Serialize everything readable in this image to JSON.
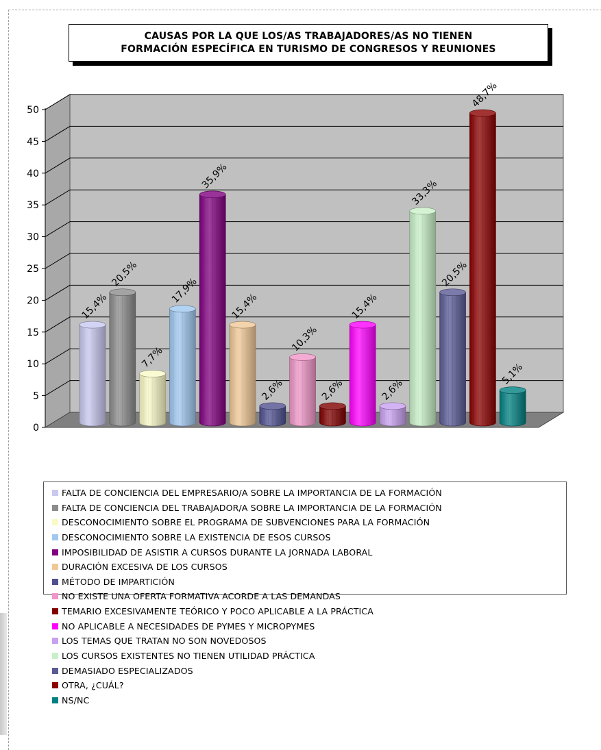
{
  "title": {
    "line1": "CAUSAS POR LA QUE LOS/AS TRABAJADORES/AS NO TIENEN",
    "line2": "FORMACIÓN ESPECÍFICA EN TURISMO DE CONGRESOS Y REUNIONES"
  },
  "chart_data": {
    "type": "bar",
    "style": "3d-cylinder",
    "ylim": [
      0,
      50
    ],
    "yticks": [
      "0",
      "5",
      "10",
      "15",
      "20",
      "25",
      "30",
      "35",
      "40",
      "45",
      "50"
    ],
    "grid": true,
    "legend_position": "bottom",
    "categories": [
      "FALTA DE  CONCIENCIA DEL EMPRESARIO/A SOBRE LA IMPORTANCIA DE LA FORMACIÓN",
      "FALTA DE CONCIENCIA DEL TRABAJADOR/A SOBRE LA IMPORTANCIA DE LA FORMACIÓN",
      "DESCONOCIMIENTO SOBRE EL PROGRAMA DE  SUBVENCIONES PARA LA FORMACIÓN",
      "DESCONOCIMIENTO SOBRE LA EXISTENCIA DE  ESOS CURSOS",
      "IMPOSIBILIDAD DE ASISTIR A CURSOS DURANTE  LA JORNADA LABORAL",
      "DURACIÓN EXCESIVA DE LOS CURSOS",
      "MÉTODO DE IMPARTICIÓN",
      "NO EXISTE UNA OFERTA FORMATIVA ACORDE A LAS DEMANDAS",
      "TEMARIO EXCESIVAMENTE TEÓRICO Y POCO APLICABLE A LA PRÁCTICA",
      "NO APLICABLE A NECESIDADES DE PYMES Y  MICROPYMES",
      "LOS TEMAS QUE TRATAN NO SON NOVEDOSOS",
      "LOS CURSOS EXISTENTES NO TIENEN UTILIDAD PRÁCTICA",
      "DEMASIADO ESPECIALIZADOS",
      "OTRA, ¿CUÁL?",
      "NS/NC"
    ],
    "values": [
      15.4,
      20.5,
      7.7,
      17.9,
      35.9,
      15.4,
      2.6,
      10.3,
      2.6,
      15.4,
      2.6,
      33.3,
      20.5,
      48.7,
      5.1
    ],
    "data_labels": [
      "15,4%",
      "20,5%",
      "7,7%",
      "17,9%",
      "35,9%",
      "15,4%",
      "2,6%",
      "10,3%",
      "2,6%",
      "15,4%",
      "2,6%",
      "33,3%",
      "20,5%",
      "48,7%",
      "5,1%"
    ],
    "colors": [
      "#c8c8f0",
      "#8c8c8c",
      "#fafac8",
      "#a0c8f0",
      "#800080",
      "#f0c896",
      "#505090",
      "#f096c8",
      "#800000",
      "#ff00ff",
      "#c8a0f0",
      "#c8f0c8",
      "#5a5a96",
      "#8b0000",
      "#008080"
    ]
  }
}
